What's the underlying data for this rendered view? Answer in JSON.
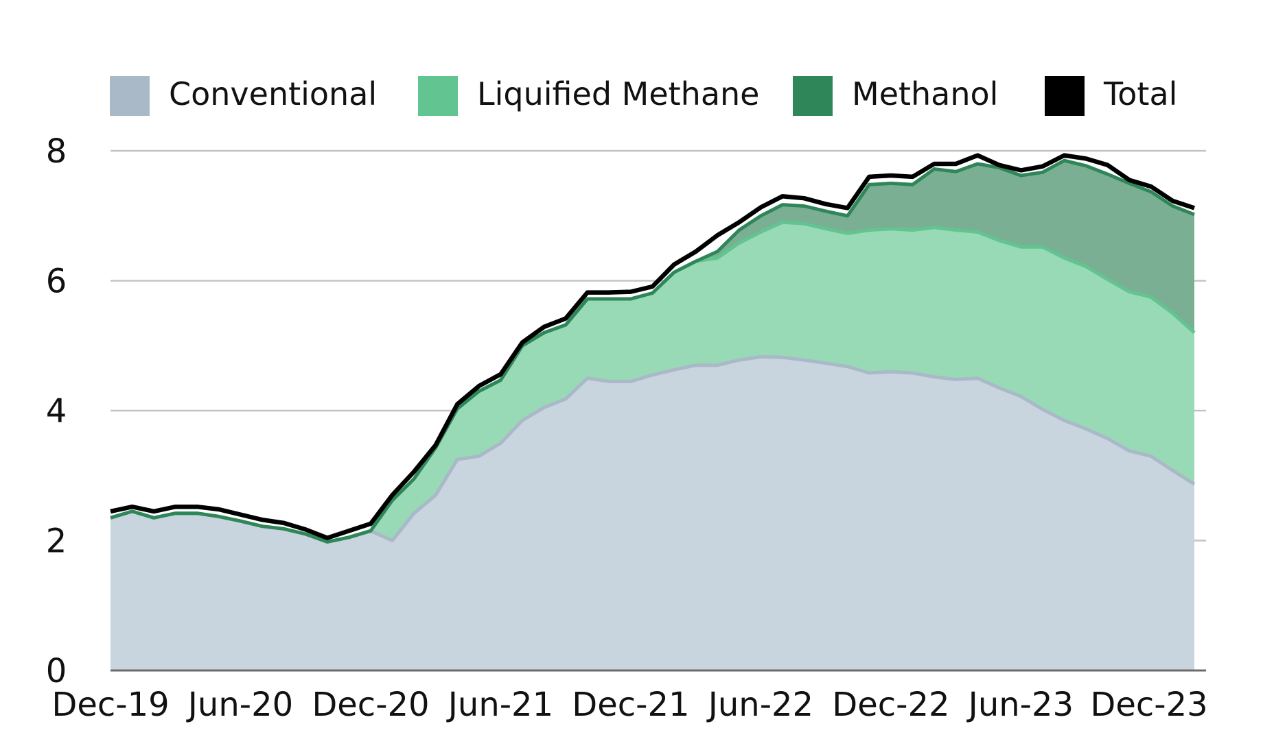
{
  "chart_data": {
    "type": "area",
    "title": "",
    "xlabel": "",
    "ylabel": "",
    "stacked": true,
    "ylim": [
      0,
      8
    ],
    "yticks": [
      0,
      2,
      4,
      6,
      8
    ],
    "grid": true,
    "legend_position": "top",
    "x": [
      "Dec-19",
      "Jan-20",
      "Feb-20",
      "Mar-20",
      "Apr-20",
      "May-20",
      "Jun-20",
      "Jul-20",
      "Aug-20",
      "Sep-20",
      "Oct-20",
      "Nov-20",
      "Dec-20",
      "Jan-21",
      "Feb-21",
      "Mar-21",
      "Apr-21",
      "May-21",
      "Jun-21",
      "Jul-21",
      "Aug-21",
      "Sep-21",
      "Oct-21",
      "Nov-21",
      "Dec-21",
      "Jan-22",
      "Feb-22",
      "Mar-22",
      "Apr-22",
      "May-22",
      "Jun-22",
      "Jul-22",
      "Aug-22",
      "Sep-22",
      "Oct-22",
      "Nov-22",
      "Dec-22",
      "Jan-23",
      "Feb-23",
      "Mar-23",
      "Apr-23",
      "May-23",
      "Jun-23",
      "Jul-23",
      "Aug-23",
      "Sep-23",
      "Oct-23",
      "Nov-23",
      "Dec-23",
      "Jan-24",
      "Feb-24"
    ],
    "xtick_labels": [
      "Dec-19",
      "Jun-20",
      "Dec-20",
      "Jun-21",
      "Dec-21",
      "Jun-22",
      "Dec-22",
      "Jun-23",
      "Dec-23"
    ],
    "series": [
      {
        "name": "Conventional",
        "color": "#a9b9c8",
        "fill": "#c8d4de",
        "values": [
          2.35,
          2.45,
          2.35,
          2.42,
          2.42,
          2.37,
          2.3,
          2.22,
          2.18,
          2.1,
          1.98,
          2.05,
          2.15,
          2.0,
          2.42,
          2.7,
          3.25,
          3.3,
          3.5,
          3.85,
          4.05,
          4.18,
          4.5,
          4.45,
          4.45,
          4.55,
          4.63,
          4.7,
          4.7,
          4.78,
          4.83,
          4.82,
          4.78,
          4.73,
          4.68,
          4.58,
          4.6,
          4.58,
          4.52,
          4.48,
          4.5,
          4.35,
          4.22,
          4.02,
          3.85,
          3.72,
          3.57,
          3.38,
          3.3,
          3.08,
          2.87
        ]
      },
      {
        "name": "Liquified Methane",
        "color": "#62c490",
        "fill": "#99dab6",
        "values": [
          0,
          0,
          0,
          0,
          0,
          0,
          0,
          0,
          0,
          0,
          0,
          0,
          0,
          0.62,
          0.53,
          0.73,
          0.78,
          1.0,
          0.97,
          1.15,
          1.15,
          1.14,
          1.22,
          1.27,
          1.27,
          1.26,
          1.5,
          1.6,
          1.65,
          1.8,
          1.92,
          2.08,
          2.1,
          2.07,
          2.05,
          2.2,
          2.2,
          2.2,
          2.3,
          2.3,
          2.25,
          2.27,
          2.3,
          2.5,
          2.5,
          2.5,
          2.45,
          2.45,
          2.45,
          2.42,
          2.33
        ]
      },
      {
        "name": "Methanol",
        "color": "#2f8659",
        "fill": "#7aaf93",
        "values": [
          0,
          0,
          0,
          0,
          0,
          0,
          0,
          0,
          0,
          0,
          0,
          0,
          0,
          0,
          0,
          0,
          0,
          0,
          0,
          0,
          0,
          0,
          0,
          0,
          0,
          0,
          0,
          0,
          0.1,
          0.2,
          0.25,
          0.27,
          0.27,
          0.27,
          0.27,
          0.7,
          0.7,
          0.7,
          0.9,
          0.9,
          1.05,
          1.12,
          1.1,
          1.15,
          1.5,
          1.55,
          1.62,
          1.67,
          1.62,
          1.65,
          1.82
        ]
      },
      {
        "name": "Total",
        "color": "#000000",
        "values": [
          2.45,
          2.52,
          2.45,
          2.52,
          2.52,
          2.48,
          2.4,
          2.32,
          2.27,
          2.17,
          2.04,
          2.15,
          2.26,
          2.7,
          3.06,
          3.47,
          4.1,
          4.38,
          4.56,
          5.05,
          5.29,
          5.42,
          5.82,
          5.82,
          5.83,
          5.91,
          6.25,
          6.45,
          6.7,
          6.9,
          7.13,
          7.3,
          7.27,
          7.18,
          7.12,
          7.6,
          7.62,
          7.6,
          7.8,
          7.8,
          7.93,
          7.78,
          7.7,
          7.76,
          7.93,
          7.88,
          7.78,
          7.55,
          7.45,
          7.23,
          7.12
        ]
      }
    ]
  }
}
